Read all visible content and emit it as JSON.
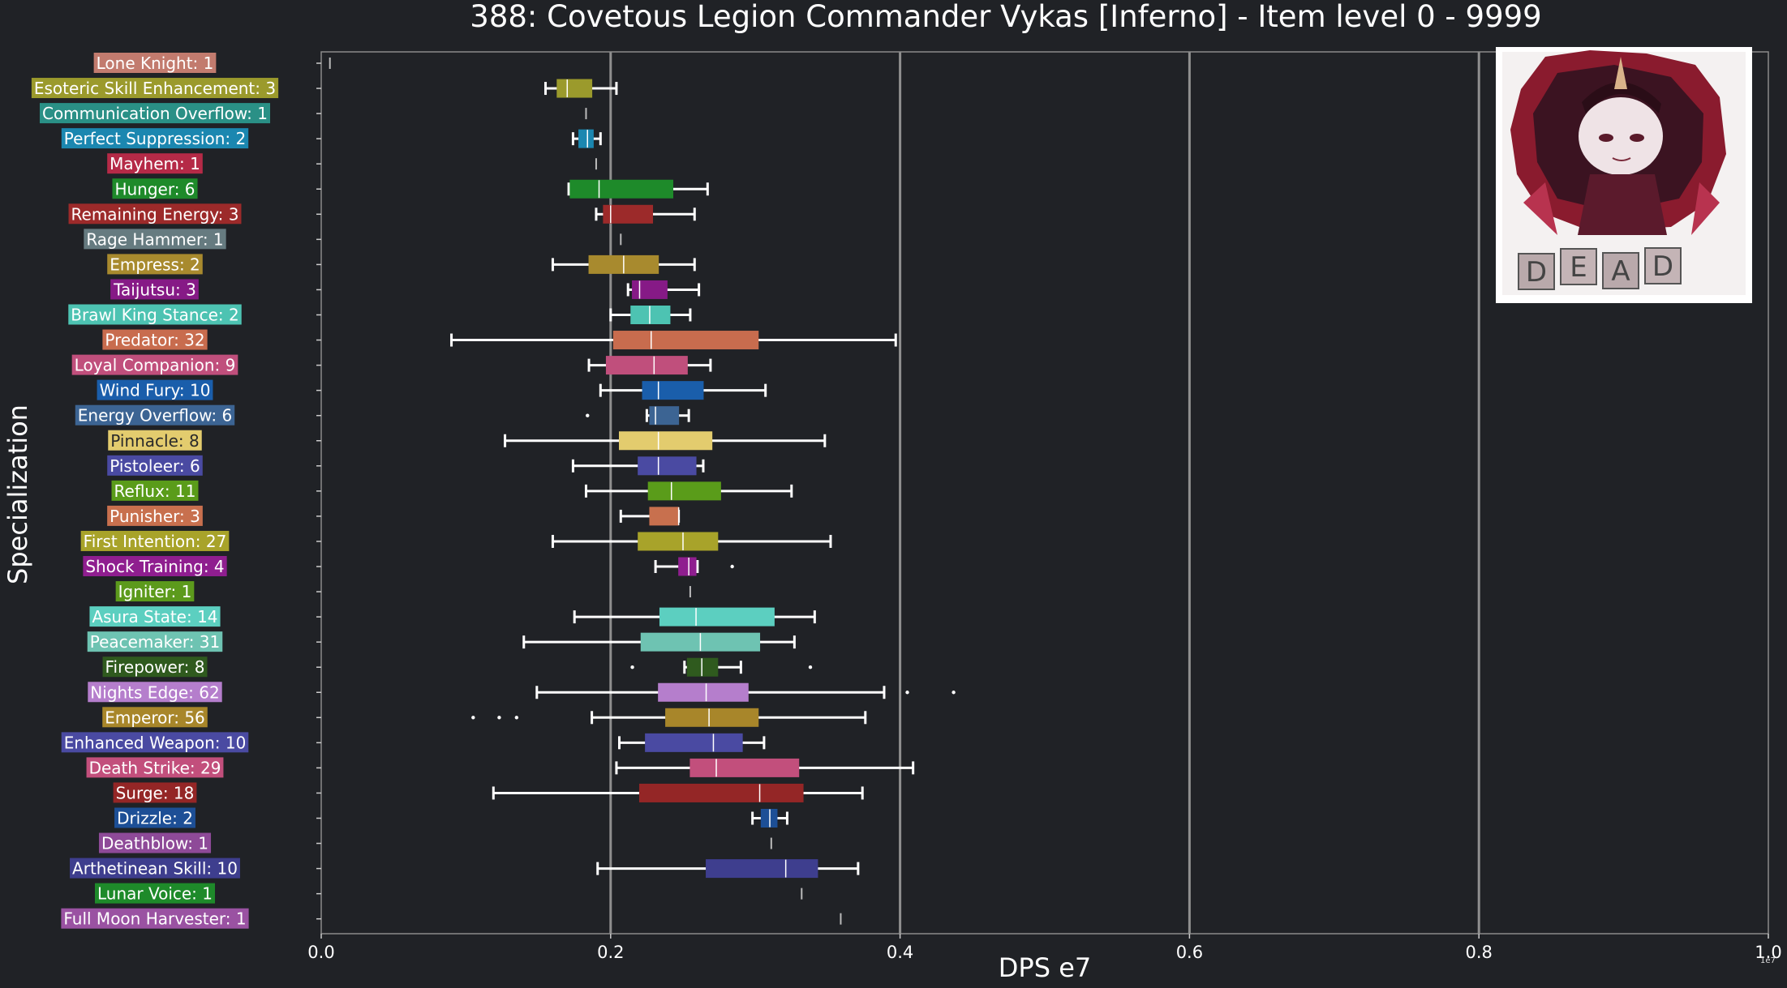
{
  "title": "388: Covetous Legion Commander Vykas [Inferno] - Item level 0 - 9999",
  "ylabel": "Specialization",
  "xlabel": "DPS e7",
  "offset_label": "1e7",
  "image_text": "DEAD",
  "colors": {
    "background": "#202226",
    "grid": "#8f8f8f",
    "axis_text": "#ffffff",
    "whisker": "#ffffff"
  },
  "chart_data": {
    "type": "box",
    "xlim": [
      0,
      1.0
    ],
    "xticks": [
      "0.0",
      "0.2",
      "0.4",
      "0.6",
      "0.8",
      "1.0"
    ],
    "grid": "vertical",
    "series": [
      {
        "label": "Lone Knight: 1",
        "color": "#c27b6e",
        "min": 0.006,
        "q1": 0.006,
        "median": 0.006,
        "q3": 0.006,
        "max": 0.006,
        "outliers": []
      },
      {
        "label": "Esoteric Skill Enhancement: 3",
        "color": "#9b9a2c",
        "min": 0.155,
        "q1": 0.163,
        "median": 0.17,
        "q3": 0.187,
        "max": 0.204,
        "outliers": []
      },
      {
        "label": "Communication Overflow: 1",
        "color": "#2a9086",
        "min": 0.183,
        "q1": 0.183,
        "median": 0.183,
        "q3": 0.183,
        "max": 0.183,
        "outliers": []
      },
      {
        "label": "Perfect Suppression: 2",
        "color": "#1b87b0",
        "min": 0.174,
        "q1": 0.178,
        "median": 0.184,
        "q3": 0.188,
        "max": 0.193,
        "outliers": []
      },
      {
        "label": "Mayhem: 1",
        "color": "#b52a47",
        "min": 0.19,
        "q1": 0.19,
        "median": 0.19,
        "q3": 0.19,
        "max": 0.19,
        "outliers": []
      },
      {
        "label": "Hunger: 6",
        "color": "#1e8a2a",
        "min": 0.171,
        "q1": 0.172,
        "median": 0.192,
        "q3": 0.243,
        "max": 0.267,
        "outliers": []
      },
      {
        "label": "Remaining Energy: 3",
        "color": "#9c2a2a",
        "min": 0.19,
        "q1": 0.195,
        "median": 0.2,
        "q3": 0.229,
        "max": 0.258,
        "outliers": []
      },
      {
        "label": "Rage Hammer: 1",
        "color": "#667b80",
        "min": 0.207,
        "q1": 0.207,
        "median": 0.207,
        "q3": 0.207,
        "max": 0.207,
        "outliers": []
      },
      {
        "label": "Empress: 2",
        "color": "#a88a2e",
        "min": 0.16,
        "q1": 0.185,
        "median": 0.209,
        "q3": 0.233,
        "max": 0.258,
        "outliers": []
      },
      {
        "label": "Taijutsu: 3",
        "color": "#861a86",
        "min": 0.212,
        "q1": 0.215,
        "median": 0.22,
        "q3": 0.239,
        "max": 0.261,
        "outliers": []
      },
      {
        "label": "Brawl King Stance: 2",
        "color": "#4dc3b2",
        "min": 0.2,
        "q1": 0.214,
        "median": 0.227,
        "q3": 0.241,
        "max": 0.255,
        "outliers": []
      },
      {
        "label": "Predator: 32",
        "color": "#c86c4e",
        "min": 0.09,
        "q1": 0.202,
        "median": 0.228,
        "q3": 0.302,
        "max": 0.397,
        "outliers": []
      },
      {
        "label": "Loyal Companion: 9",
        "color": "#c04f7c",
        "min": 0.185,
        "q1": 0.197,
        "median": 0.23,
        "q3": 0.253,
        "max": 0.269,
        "outliers": []
      },
      {
        "label": "Wind Fury: 10",
        "color": "#1a5eab",
        "min": 0.193,
        "q1": 0.222,
        "median": 0.233,
        "q3": 0.264,
        "max": 0.307,
        "outliers": []
      },
      {
        "label": "Energy Overflow: 6",
        "color": "#3c6493",
        "min": 0.225,
        "q1": 0.227,
        "median": 0.231,
        "q3": 0.247,
        "max": 0.254,
        "outliers": [
          0.184
        ]
      },
      {
        "label": "Pinnacle: 8",
        "color": "#e3cc6e",
        "min": 0.127,
        "q1": 0.206,
        "median": 0.233,
        "q3": 0.27,
        "max": 0.348,
        "outliers": []
      },
      {
        "label": "Pistoleer: 6",
        "color": "#4a4aa2",
        "min": 0.174,
        "q1": 0.219,
        "median": 0.233,
        "q3": 0.259,
        "max": 0.264,
        "outliers": []
      },
      {
        "label": "Reflux: 11",
        "color": "#5a9c1a",
        "min": 0.183,
        "q1": 0.226,
        "median": 0.242,
        "q3": 0.276,
        "max": 0.325,
        "outliers": []
      },
      {
        "label": "Punisher: 3",
        "color": "#c8704e",
        "min": 0.207,
        "q1": 0.227,
        "median": 0.247,
        "q3": 0.247,
        "max": 0.247,
        "outliers": []
      },
      {
        "label": "First Intention: 27",
        "color": "#a8a32a",
        "min": 0.16,
        "q1": 0.219,
        "median": 0.25,
        "q3": 0.274,
        "max": 0.352,
        "outliers": []
      },
      {
        "label": "Shock Training: 4",
        "color": "#8f1e8f",
        "min": 0.231,
        "q1": 0.247,
        "median": 0.254,
        "q3": 0.259,
        "max": 0.26,
        "outliers": [
          0.284
        ]
      },
      {
        "label": "Igniter: 1",
        "color": "#5c9a1c",
        "min": 0.255,
        "q1": 0.255,
        "median": 0.255,
        "q3": 0.255,
        "max": 0.255,
        "outliers": []
      },
      {
        "label": "Asura State: 14",
        "color": "#5ccfc0",
        "min": 0.175,
        "q1": 0.234,
        "median": 0.259,
        "q3": 0.313,
        "max": 0.341,
        "outliers": []
      },
      {
        "label": "Peacemaker: 31",
        "color": "#6ec3b2",
        "min": 0.14,
        "q1": 0.221,
        "median": 0.262,
        "q3": 0.303,
        "max": 0.327,
        "outliers": []
      },
      {
        "label": "Firepower: 8",
        "color": "#2f5a1e",
        "min": 0.251,
        "q1": 0.253,
        "median": 0.263,
        "q3": 0.274,
        "max": 0.29,
        "outliers": [
          0.215,
          0.338
        ]
      },
      {
        "label": "Nights Edge: 62",
        "color": "#b57ecc",
        "min": 0.149,
        "q1": 0.233,
        "median": 0.266,
        "q3": 0.295,
        "max": 0.389,
        "outliers": [
          0.405,
          0.437
        ]
      },
      {
        "label": "Emperor: 56",
        "color": "#a8862a",
        "min": 0.187,
        "q1": 0.238,
        "median": 0.268,
        "q3": 0.302,
        "max": 0.376,
        "outliers": [
          0.105,
          0.123,
          0.135
        ]
      },
      {
        "label": "Enhanced Weapon: 10",
        "color": "#4a4aa2",
        "min": 0.206,
        "q1": 0.224,
        "median": 0.271,
        "q3": 0.291,
        "max": 0.306,
        "outliers": []
      },
      {
        "label": "Death Strike: 29",
        "color": "#c24f7c",
        "min": 0.204,
        "q1": 0.255,
        "median": 0.273,
        "q3": 0.33,
        "max": 0.409,
        "outliers": []
      },
      {
        "label": "Surge: 18",
        "color": "#942626",
        "min": 0.119,
        "q1": 0.22,
        "median": 0.303,
        "q3": 0.333,
        "max": 0.374,
        "outliers": []
      },
      {
        "label": "Drizzle: 2",
        "color": "#1d4f96",
        "min": 0.298,
        "q1": 0.304,
        "median": 0.31,
        "q3": 0.315,
        "max": 0.322,
        "outliers": []
      },
      {
        "label": "Deathblow: 1",
        "color": "#8e4a98",
        "min": 0.311,
        "q1": 0.311,
        "median": 0.311,
        "q3": 0.311,
        "max": 0.311,
        "outliers": []
      },
      {
        "label": "Arthetinean Skill: 10",
        "color": "#3e3e8e",
        "min": 0.191,
        "q1": 0.266,
        "median": 0.321,
        "q3": 0.343,
        "max": 0.371,
        "outliers": []
      },
      {
        "label": "Lunar Voice: 1",
        "color": "#1e8a2a",
        "min": 0.332,
        "q1": 0.332,
        "median": 0.332,
        "q3": 0.332,
        "max": 0.332,
        "outliers": []
      },
      {
        "label": "Full Moon Harvester: 1",
        "color": "#9a52a2",
        "min": 0.359,
        "q1": 0.359,
        "median": 0.359,
        "q3": 0.359,
        "max": 0.359,
        "outliers": []
      }
    ]
  }
}
